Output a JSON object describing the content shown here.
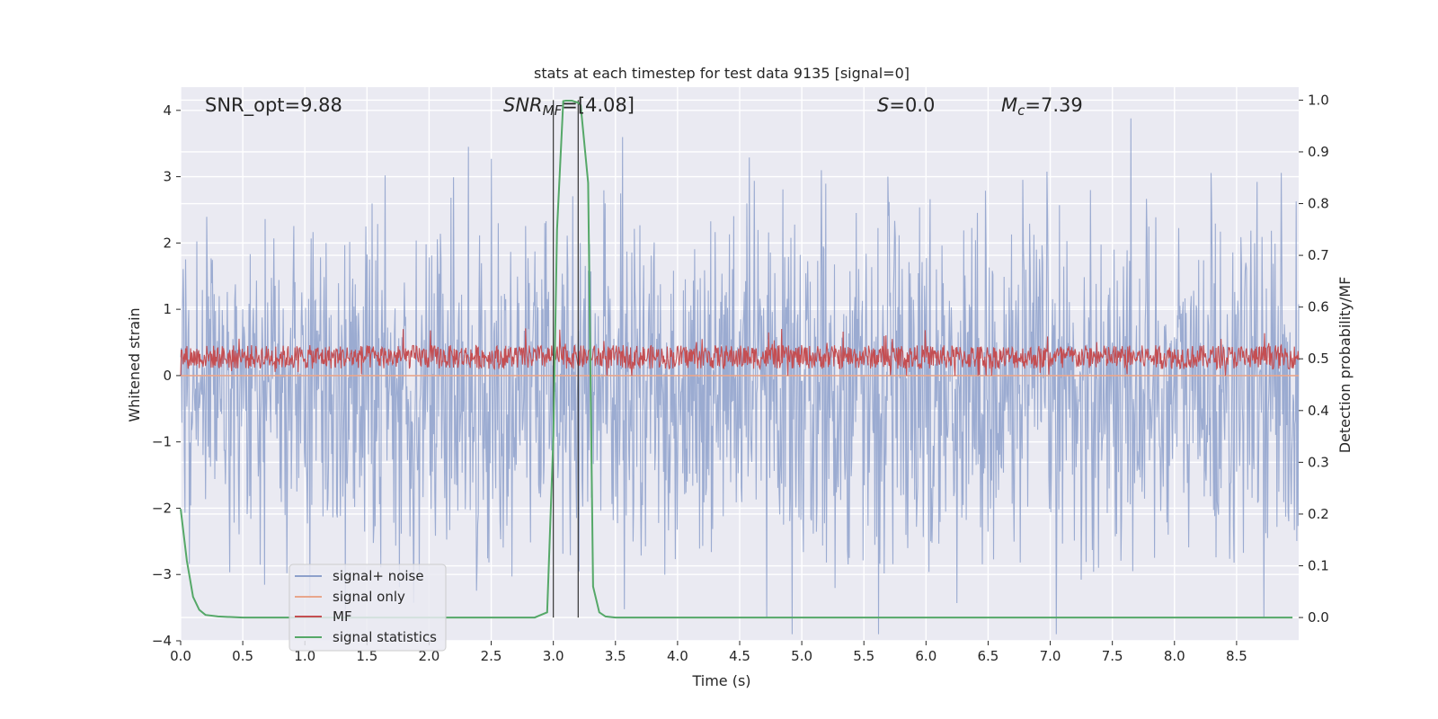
{
  "chart_data": {
    "type": "line",
    "title": "stats at each timestep for test data 9135 [signal=0]",
    "xlabel": "Time (s)",
    "ylabel_left": "Whitened strain",
    "ylabel_right": "Detection probability/MF",
    "xlim": [
      0.0,
      9.0
    ],
    "ylim_left": [
      -4.0,
      4.35
    ],
    "ylim_right": [
      -0.045,
      1.025
    ],
    "xticks": [
      0.0,
      0.5,
      1.0,
      1.5,
      2.0,
      2.5,
      3.0,
      3.5,
      4.0,
      4.5,
      5.0,
      5.5,
      6.0,
      6.5,
      7.0,
      7.5,
      8.0,
      8.5
    ],
    "xtick_labels": [
      "0.0",
      "0.5",
      "1.0",
      "1.5",
      "2.0",
      "2.5",
      "3.0",
      "3.5",
      "4.0",
      "4.5",
      "5.0",
      "5.5",
      "6.0",
      "6.5",
      "7.0",
      "7.5",
      "8.0",
      "8.5"
    ],
    "yticks_left": [
      4,
      3,
      2,
      1,
      0,
      -1,
      -2,
      -3,
      -4
    ],
    "ytick_labels_left": [
      "4",
      "3",
      "2",
      "1",
      "0",
      "−1",
      "−2",
      "−3",
      "−4"
    ],
    "yticks_right": [
      1.0,
      0.9,
      0.8,
      0.7,
      0.6,
      0.5,
      0.4,
      0.3,
      0.2,
      0.1,
      0.0
    ],
    "ytick_labels_right": [
      "1.0",
      "0.9",
      "0.8",
      "0.7",
      "0.6",
      "0.5",
      "0.4",
      "0.3",
      "0.2",
      "0.1",
      "0.0"
    ],
    "annotations": {
      "snr_opt": "SNR_opt=9.88",
      "snr_mf_base": "SNR",
      "snr_mf_sub": "MF",
      "snr_mf_value": "=[4.08]",
      "s_var": "S",
      "s_value": "=0.0",
      "mc_var": "M",
      "mc_sub": "c",
      "mc_value": "=7.39"
    },
    "vlines_x": [
      3.0,
      3.2
    ],
    "noise_params": {
      "n": 1800,
      "center": -0.2,
      "std": 1.0,
      "min": -3.9,
      "max": 4.0
    },
    "mf_params": {
      "n": 1800,
      "center": 0.28,
      "amp": 0.18,
      "min": 0.0,
      "max": 0.9
    },
    "signal_only_y": 0.0,
    "series": [
      {
        "name": "signal+ noise",
        "color": "#8da0cb"
      },
      {
        "name": "signal only",
        "color": "#e8a68c",
        "values_const": 0.0
      },
      {
        "name": "MF",
        "color": "#c44e52"
      },
      {
        "name": "signal statistics",
        "color": "#55a868",
        "axis": "right",
        "x": [
          0.0,
          0.05,
          0.1,
          0.15,
          0.2,
          0.3,
          0.5,
          1.0,
          2.0,
          2.85,
          2.95,
          3.0,
          3.03,
          3.08,
          3.1,
          3.15,
          3.2,
          3.22,
          3.28,
          3.32,
          3.37,
          3.42,
          3.5,
          4.0,
          5.0,
          6.0,
          7.0,
          8.0,
          8.95
        ],
        "values": [
          0.21,
          0.11,
          0.04,
          0.015,
          0.005,
          0.002,
          0.0,
          0.0,
          0.0,
          0.0,
          0.01,
          0.35,
          0.75,
          0.998,
          0.999,
          0.999,
          0.995,
          0.99,
          0.84,
          0.06,
          0.01,
          0.002,
          0.0,
          0.0,
          0.0,
          0.0,
          0.0,
          0.0,
          0.0
        ]
      }
    ],
    "legend_location": "lower-left"
  }
}
